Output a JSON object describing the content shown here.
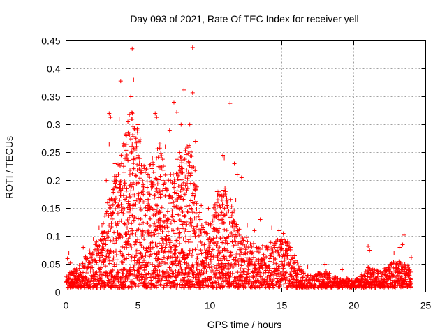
{
  "chart_data": {
    "type": "scatter",
    "title": "Day 093 of 2021, Rate Of TEC Index for receiver yell",
    "xlabel": "GPS time / hours",
    "ylabel": "ROTI / TECUs",
    "xlim": [
      0,
      25
    ],
    "ylim": [
      0,
      0.45
    ],
    "x_ticks": [
      "0",
      "5",
      "10",
      "15",
      "20",
      "25"
    ],
    "y_ticks": [
      "0",
      "0.05",
      "0.1",
      "0.15",
      "0.2",
      "0.25",
      "0.3",
      "0.35",
      "0.4",
      "0.45"
    ],
    "grid": true,
    "marker": "plus",
    "series": [
      {
        "color": "#ff0000",
        "envelope": [
          [
            0.0,
            0.03
          ],
          [
            0.5,
            0.04
          ],
          [
            1.0,
            0.05
          ],
          [
            1.5,
            0.07
          ],
          [
            2.0,
            0.09
          ],
          [
            2.5,
            0.12
          ],
          [
            3.0,
            0.17
          ],
          [
            3.5,
            0.22
          ],
          [
            4.0,
            0.28
          ],
          [
            4.5,
            0.33
          ],
          [
            5.0,
            0.3
          ],
          [
            5.5,
            0.22
          ],
          [
            6.0,
            0.24
          ],
          [
            6.5,
            0.27
          ],
          [
            7.0,
            0.2
          ],
          [
            7.5,
            0.22
          ],
          [
            8.0,
            0.26
          ],
          [
            8.5,
            0.27
          ],
          [
            9.0,
            0.22
          ],
          [
            9.5,
            0.12
          ],
          [
            10.0,
            0.13
          ],
          [
            10.5,
            0.18
          ],
          [
            11.0,
            0.2
          ],
          [
            11.5,
            0.17
          ],
          [
            12.0,
            0.12
          ],
          [
            12.5,
            0.1
          ],
          [
            13.0,
            0.09
          ],
          [
            13.5,
            0.08
          ],
          [
            14.0,
            0.09
          ],
          [
            14.5,
            0.09
          ],
          [
            15.0,
            0.1
          ],
          [
            15.5,
            0.09
          ],
          [
            16.0,
            0.06
          ],
          [
            16.5,
            0.035
          ],
          [
            17.0,
            0.03
          ],
          [
            17.5,
            0.035
          ],
          [
            18.0,
            0.04
          ],
          [
            18.5,
            0.03
          ],
          [
            19.0,
            0.025
          ],
          [
            19.5,
            0.025
          ],
          [
            20.0,
            0.02
          ],
          [
            20.5,
            0.03
          ],
          [
            21.0,
            0.045
          ],
          [
            21.5,
            0.04
          ],
          [
            22.0,
            0.04
          ],
          [
            22.5,
            0.05
          ],
          [
            23.0,
            0.06
          ],
          [
            23.5,
            0.05
          ],
          [
            24.0,
            0.045
          ]
        ],
        "points": [
          [
            4.6,
            0.436
          ],
          [
            8.8,
            0.438
          ],
          [
            4.7,
            0.38
          ],
          [
            3.8,
            0.378
          ],
          [
            8.2,
            0.362
          ],
          [
            6.6,
            0.355
          ],
          [
            8.8,
            0.357
          ],
          [
            11.4,
            0.338
          ],
          [
            4.5,
            0.35
          ],
          [
            7.5,
            0.34
          ],
          [
            6.2,
            0.32
          ],
          [
            6.3,
            0.313
          ],
          [
            3.0,
            0.32
          ],
          [
            3.1,
            0.313
          ],
          [
            7.7,
            0.322
          ],
          [
            8.0,
            0.3
          ],
          [
            3.7,
            0.31
          ],
          [
            4.3,
            0.305
          ],
          [
            5.0,
            0.3
          ],
          [
            7.2,
            0.29
          ],
          [
            8.6,
            0.3
          ],
          [
            9.0,
            0.27
          ],
          [
            4.2,
            0.28
          ],
          [
            3.0,
            0.265
          ],
          [
            10.9,
            0.245
          ],
          [
            11.0,
            0.24
          ],
          [
            11.7,
            0.23
          ],
          [
            11.9,
            0.21
          ],
          [
            12.2,
            0.205
          ],
          [
            10.5,
            0.18
          ],
          [
            11.8,
            0.165
          ],
          [
            9.9,
            0.15
          ],
          [
            13.5,
            0.13
          ],
          [
            14.3,
            0.115
          ],
          [
            14.8,
            0.11
          ],
          [
            15.1,
            0.105
          ],
          [
            0.2,
            0.07
          ],
          [
            0.1,
            0.06
          ],
          [
            0.3,
            0.052
          ],
          [
            1.2,
            0.08
          ],
          [
            1.9,
            0.095
          ],
          [
            2.3,
            0.115
          ],
          [
            2.5,
            0.12
          ],
          [
            21.0,
            0.082
          ],
          [
            21.1,
            0.075
          ],
          [
            22.8,
            0.07
          ],
          [
            23.2,
            0.08
          ],
          [
            23.4,
            0.085
          ],
          [
            23.5,
            0.102
          ],
          [
            24.0,
            0.062
          ],
          [
            18.0,
            0.05
          ],
          [
            19.2,
            0.04
          ],
          [
            16.8,
            0.045
          ],
          [
            15.6,
            0.08
          ],
          [
            15.4,
            0.065
          ],
          [
            12.6,
            0.12
          ],
          [
            13.1,
            0.11
          ],
          [
            9.4,
            0.155
          ],
          [
            9.3,
            0.13
          ],
          [
            5.7,
            0.21
          ],
          [
            6.9,
            0.26
          ],
          [
            7.9,
            0.25
          ],
          [
            2.8,
            0.2
          ],
          [
            3.4,
            0.23
          ]
        ]
      }
    ]
  }
}
